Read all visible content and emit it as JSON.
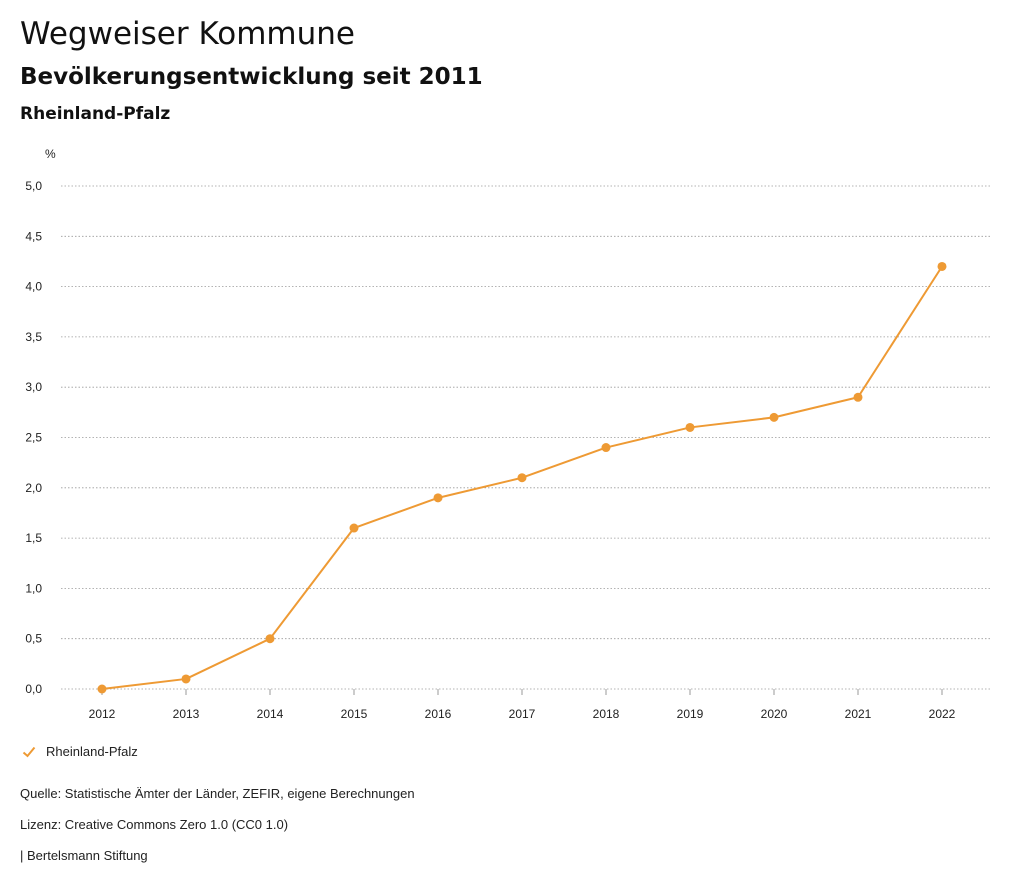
{
  "header": {
    "title": "Wegweiser Kommune",
    "subtitle": "Bevölkerungsentwicklung seit 2011",
    "region": "Rheinland-Pfalz"
  },
  "colors": {
    "series": "#ee9a34",
    "grid": "#9a9a9a",
    "text": "#222222"
  },
  "chart_data": {
    "type": "line",
    "title": "Bevölkerungsentwicklung seit 2011",
    "ylabel": "%",
    "xlabel": "",
    "x": [
      "2012",
      "2013",
      "2014",
      "2015",
      "2016",
      "2017",
      "2018",
      "2019",
      "2020",
      "2021",
      "2022"
    ],
    "series": [
      {
        "name": "Rheinland-Pfalz",
        "values": [
          0.0,
          0.1,
          0.5,
          1.6,
          1.9,
          2.1,
          2.4,
          2.6,
          2.7,
          2.9,
          4.2
        ]
      }
    ],
    "ylim": [
      0,
      5
    ],
    "yticks": [
      0,
      0.5,
      1,
      1.5,
      2,
      2.5,
      3,
      3.5,
      4,
      4.5,
      5
    ],
    "ytick_labels": [
      "0,0",
      "0,5",
      "1,0",
      "1,5",
      "2,0",
      "2,5",
      "3,0",
      "3,5",
      "4,0",
      "4,5",
      "5,0"
    ],
    "grid": true,
    "legend_position": "bottom-left"
  },
  "legend": {
    "label": "Rheinland-Pfalz"
  },
  "footer": {
    "source": "Quelle: Statistische Ämter der Länder, ZEFIR, eigene Berechnungen",
    "license": "Lizenz: Creative Commons Zero 1.0 (CC0 1.0)",
    "publisher": "| Bertelsmann Stiftung"
  }
}
